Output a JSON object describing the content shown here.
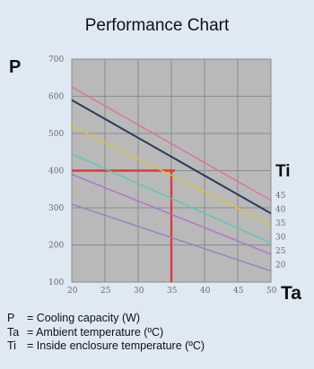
{
  "chart_data": {
    "type": "line",
    "title": "Performance Chart",
    "ylabel": "P",
    "xlabel": "Ta",
    "legend_title": "Ti",
    "xlim": [
      20,
      50
    ],
    "ylim": [
      100,
      700
    ],
    "x_ticks": [
      "20",
      "25",
      "30",
      "35",
      "40",
      "45",
      "50"
    ],
    "y_ticks": [
      "100",
      "200",
      "300",
      "400",
      "500",
      "600",
      "700"
    ],
    "grid": true,
    "series": [
      {
        "name": "45",
        "color": "#e0709a",
        "values": [
          [
            20,
            625
          ],
          [
            50,
            320
          ]
        ]
      },
      {
        "name": "40",
        "color": "#2a3a5c",
        "values": [
          [
            20,
            590
          ],
          [
            50,
            285
          ]
        ]
      },
      {
        "name": "35",
        "color": "#e0c23a",
        "values": [
          [
            20,
            520
          ],
          [
            50,
            255
          ]
        ]
      },
      {
        "name": "30",
        "color": "#5cc7b3",
        "values": [
          [
            20,
            445
          ],
          [
            50,
            205
          ]
        ]
      },
      {
        "name": "25",
        "color": "#b16fd0",
        "values": [
          [
            20,
            390
          ],
          [
            50,
            175
          ]
        ]
      },
      {
        "name": "20",
        "color": "#9a7fc4",
        "values": [
          [
            20,
            310
          ],
          [
            50,
            130
          ]
        ]
      }
    ],
    "annotation": {
      "color": "#e0393a",
      "x": 35,
      "y": 400
    }
  },
  "legend": [
    {
      "symbol": "P",
      "text": "= Cooling capacity (W)"
    },
    {
      "symbol": "Ta",
      "text": "= Ambient temperature (ºC)"
    },
    {
      "symbol": "Ti",
      "text": "= Inside enclosure temperature (ºC)"
    }
  ]
}
